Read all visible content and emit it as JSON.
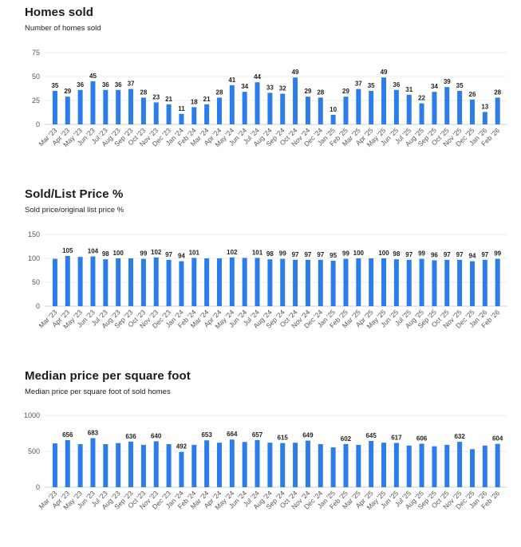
{
  "chart_data": [
    {
      "type": "bar",
      "title": "Homes sold",
      "subtitle": "Number of homes sold",
      "categories": [
        "Mar '23",
        "Apr '23",
        "May '23",
        "Jun '23",
        "Jul '23",
        "Aug '23",
        "Sep '23",
        "Oct '23",
        "Nov '23",
        "Dec '23",
        "Jan '24",
        "Feb '24",
        "Mar '24",
        "Apr '24",
        "May '24",
        "Jun '24",
        "Jul '24",
        "Aug '24",
        "Sep '24",
        "Oct '24",
        "Nov '24",
        "Dec '24",
        "Jan '25",
        "Feb '25",
        "Mar '25",
        "Apr '25",
        "May '25",
        "Jun '25",
        "Jul '25",
        "Aug '25",
        "Sep '25",
        "Oct '25",
        "Nov '25",
        "Dec '25",
        "Jan '26",
        "Feb '26"
      ],
      "values": [
        35,
        29,
        36,
        45,
        36,
        36,
        37,
        28,
        23,
        21,
        11,
        18,
        21,
        28,
        41,
        34,
        44,
        33,
        32,
        49,
        29,
        28,
        10,
        29,
        37,
        35,
        49,
        36,
        31,
        22,
        34,
        39,
        35,
        26,
        13,
        28
      ],
      "ylim": [
        0,
        75
      ],
      "yticks": [
        0,
        25,
        50,
        75
      ],
      "bar_color": "#2b7de9",
      "grid": true
    },
    {
      "type": "bar",
      "title": "Sold/List Price %",
      "subtitle": "Sold price/original list price %",
      "categories": [
        "Mar '23",
        "Apr '23",
        "May '23",
        "Jun '23",
        "Jul '23",
        "Aug '23",
        "Sep '23",
        "Oct '23",
        "Nov '23",
        "Dec '23",
        "Jan '24",
        "Feb '24",
        "Mar '24",
        "Apr '24",
        "May '24",
        "Jun '24",
        "Jul '24",
        "Aug '24",
        "Sep '24",
        "Oct '24",
        "Nov '24",
        "Dec '24",
        "Jan '25",
        "Feb '25",
        "Mar '25",
        "Apr '25",
        "May '25",
        "Jun '25",
        "Jul '25",
        "Aug '25",
        "Sep '25",
        "Oct '25",
        "Nov '25",
        "Dec '25",
        "Jan '26",
        "Feb '26"
      ],
      "values": [
        99,
        105,
        103,
        104,
        98,
        100,
        100,
        99,
        102,
        97,
        94,
        101,
        100,
        100,
        102,
        101,
        101,
        98,
        99,
        97,
        97,
        97,
        95,
        99,
        100,
        100,
        100,
        98,
        97,
        99,
        96,
        97,
        97,
        94,
        97,
        99
      ],
      "labeled": [
        false,
        true,
        false,
        true,
        true,
        true,
        false,
        true,
        true,
        true,
        true,
        true,
        false,
        false,
        true,
        false,
        true,
        true,
        true,
        true,
        true,
        true,
        true,
        true,
        true,
        false,
        true,
        true,
        true,
        true,
        true,
        true,
        true,
        true,
        true,
        true
      ],
      "ylim": [
        0,
        150
      ],
      "yticks": [
        0,
        50,
        100,
        150
      ],
      "bar_color": "#2b7de9",
      "grid": true
    },
    {
      "type": "bar",
      "title": "Median price per square foot",
      "subtitle": "Median price per square foot of sold homes",
      "categories": [
        "Mar '23",
        "Apr '23",
        "May '23",
        "Jun '23",
        "Jul '23",
        "Aug '23",
        "Sep '23",
        "Oct '23",
        "Nov '23",
        "Dec '23",
        "Jan '24",
        "Feb '24",
        "Mar '24",
        "Apr '24",
        "May '24",
        "Jun '24",
        "Jul '24",
        "Aug '24",
        "Sep '24",
        "Oct '24",
        "Nov '24",
        "Dec '24",
        "Jan '25",
        "Feb '25",
        "Mar '25",
        "Apr '25",
        "May '25",
        "Jun '25",
        "Jul '25",
        "Aug '25",
        "Sep '25",
        "Oct '25",
        "Nov '25",
        "Dec '25",
        "Jan '26",
        "Feb '26"
      ],
      "values": [
        610,
        656,
        600,
        683,
        600,
        615,
        636,
        590,
        640,
        600,
        492,
        590,
        653,
        620,
        664,
        630,
        657,
        620,
        615,
        620,
        649,
        600,
        555,
        602,
        590,
        645,
        620,
        617,
        580,
        606,
        570,
        590,
        632,
        530,
        580,
        604
      ],
      "labeled": [
        false,
        true,
        false,
        true,
        false,
        false,
        true,
        false,
        true,
        false,
        true,
        false,
        true,
        false,
        true,
        false,
        true,
        false,
        true,
        false,
        true,
        false,
        false,
        true,
        false,
        true,
        false,
        true,
        false,
        true,
        false,
        false,
        true,
        false,
        false,
        true
      ],
      "ylim": [
        0,
        1000
      ],
      "yticks": [
        0,
        500,
        1000
      ],
      "bar_color": "#2b7de9",
      "grid": true
    }
  ]
}
